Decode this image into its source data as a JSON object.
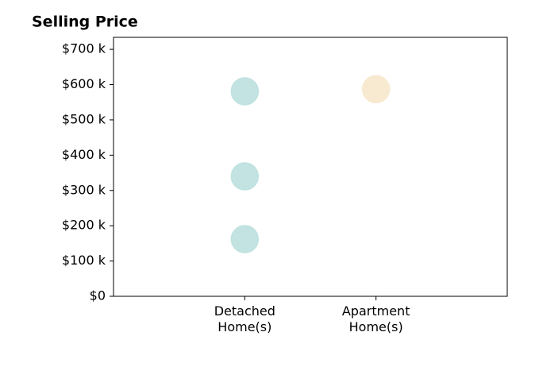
{
  "chart_data": {
    "type": "scatter",
    "title": "Selling Price",
    "categories": [
      "Detached\nHome(s)",
      "Apartment\nHome(s)"
    ],
    "xlim": [
      -1,
      2
    ],
    "series": [
      {
        "color": "#bfe2df",
        "x": [
          0,
          0,
          0
        ],
        "values": [
          581,
          340,
          162
        ]
      },
      {
        "color": "#f8e9cf",
        "x": [
          1
        ],
        "values": [
          587
        ]
      }
    ],
    "ylim": [
      0,
      734
    ],
    "yticks": [
      {
        "value": 0,
        "label": "$0"
      },
      {
        "value": 100,
        "label": "$100 k"
      },
      {
        "value": 200,
        "label": "$200 k"
      },
      {
        "value": 300,
        "label": "$300 k"
      },
      {
        "value": 400,
        "label": "$400 k"
      },
      {
        "value": 500,
        "label": "$500 k"
      },
      {
        "value": 600,
        "label": "$600 k"
      },
      {
        "value": 700,
        "label": "$700 k"
      }
    ]
  }
}
